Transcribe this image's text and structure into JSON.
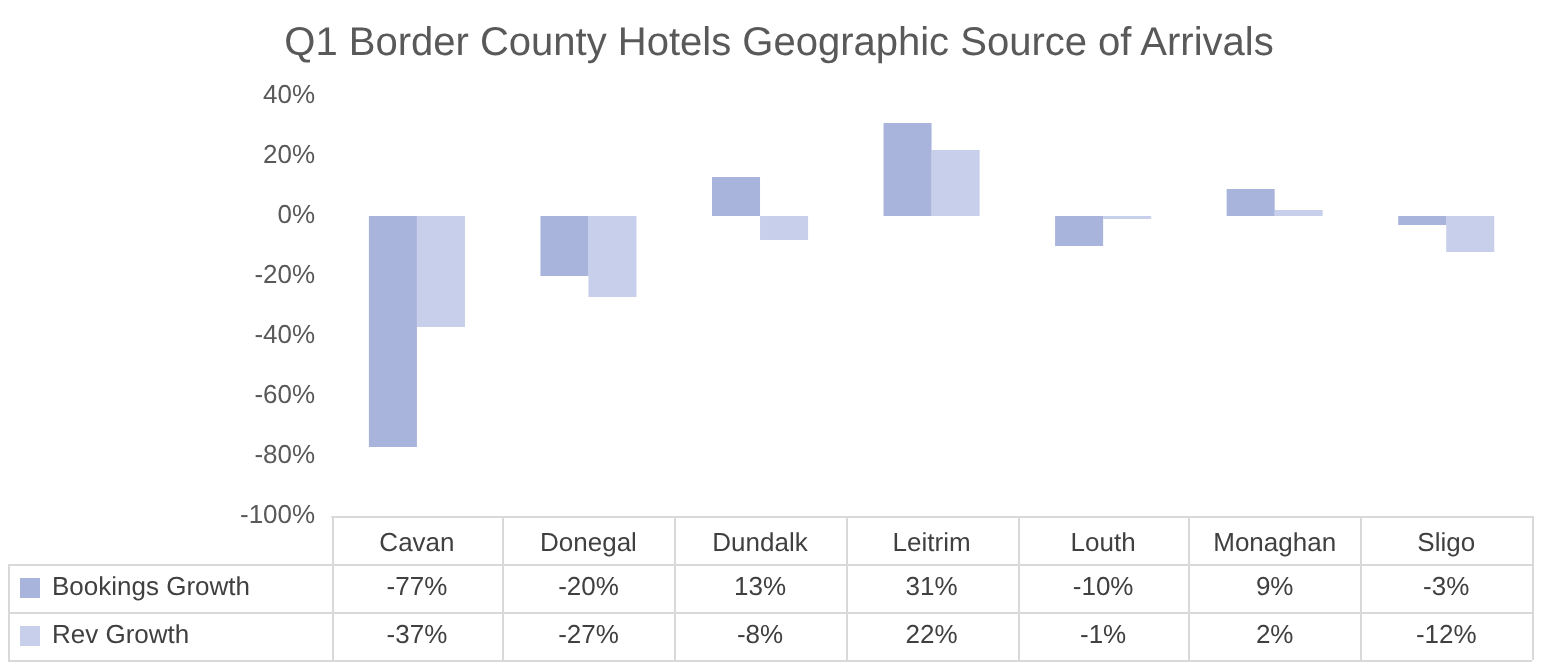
{
  "chart_data": {
    "type": "bar",
    "title": "Q1 Border County Hotels Geographic Source of Arrivals",
    "categories": [
      "Cavan",
      "Donegal",
      "Dundalk",
      "Leitrim",
      "Louth",
      "Monaghan",
      "Sligo"
    ],
    "series": [
      {
        "name": "Bookings Growth",
        "color": "#a9b4dd",
        "values": [
          -77,
          -20,
          13,
          31,
          -10,
          9,
          -3
        ],
        "value_labels": [
          "-77%",
          "-20%",
          "13%",
          "31%",
          "-10%",
          "9%",
          "-3%"
        ]
      },
      {
        "name": "Rev Growth",
        "color": "#c8cfea",
        "values": [
          -37,
          -27,
          -8,
          22,
          -1,
          2,
          -12
        ],
        "value_labels": [
          "-37%",
          "-27%",
          "-8%",
          "22%",
          "-1%",
          "2%",
          "-12%"
        ]
      }
    ],
    "ylim": [
      -100,
      40
    ],
    "yticks": [
      {
        "value": -100,
        "label": "-100%"
      },
      {
        "value": -80,
        "label": "-80%"
      },
      {
        "value": -60,
        "label": "-60%"
      },
      {
        "value": -40,
        "label": "-40%"
      },
      {
        "value": -20,
        "label": "-20%"
      },
      {
        "value": 0,
        "label": "0%"
      },
      {
        "value": 20,
        "label": "20%"
      },
      {
        "value": 40,
        "label": "40%"
      }
    ],
    "grid": false,
    "legend": "bottom"
  }
}
